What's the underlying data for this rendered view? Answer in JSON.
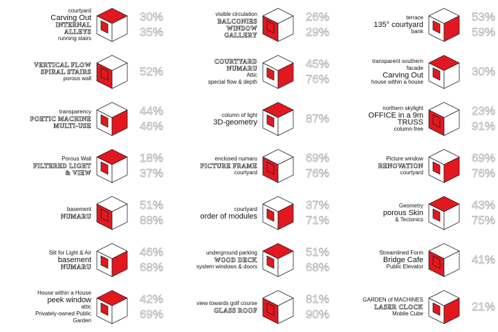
{
  "cells": [
    {
      "labels": [
        "courtyard",
        "Carving Out",
        "INTERNAL ALLEYS",
        "running stairs"
      ],
      "percents": [
        "30%",
        "35%"
      ]
    },
    {
      "labels": [
        "VERTICAL FLOW",
        "SPIRAL STAIRS",
        "porous wall"
      ],
      "percents": [
        "52%"
      ]
    },
    {
      "labels": [
        "transparency",
        "POETIC MACHINE",
        "MULTI-USE"
      ],
      "percents": [
        "44%",
        "46%"
      ]
    },
    {
      "labels": [
        "Porous Wall",
        "FILTERED LIGHT & VIEW"
      ],
      "percents": [
        "18%",
        "37%"
      ]
    },
    {
      "labels": [
        "basement",
        "NUMARU"
      ],
      "percents": [
        "51%",
        "88%"
      ]
    },
    {
      "labels": [
        "Slit for Light & Air",
        "basement",
        "NUMARU"
      ],
      "percents": [
        "46%",
        "68%"
      ]
    },
    {
      "labels": [
        "House within a House",
        "peek window",
        "attic",
        "Privately-owned Public Garden"
      ],
      "percents": [
        "42%",
        "69%"
      ]
    },
    {
      "labels": [
        "visible circulation",
        "BALCONIES",
        "WINDOW GALLERY"
      ],
      "percents": [
        "26%",
        "29%"
      ]
    },
    {
      "labels": [
        "COURTYARD",
        "NUMARU",
        "Attic",
        "special flow & depth"
      ],
      "percents": [
        "45%",
        "76%"
      ]
    },
    {
      "labels": [
        "column of light",
        "3D-geometry"
      ],
      "percents": [
        "87%"
      ]
    },
    {
      "labels": [
        "enclosed numaru",
        "PICTURE FRAME",
        "courtyard"
      ],
      "percents": [
        "69%",
        "76%"
      ]
    },
    {
      "labels": [
        "courtyard",
        "order of modules"
      ],
      "percents": [
        "37%",
        "71%"
      ]
    },
    {
      "labels": [
        "underground parking",
        "WOOD DECK",
        "system windows & doors"
      ],
      "percents": [
        "51%",
        "68%"
      ]
    },
    {
      "labels": [
        "view towards golf course",
        "GLASS ROOF"
      ],
      "percents": [
        "81%",
        "90%"
      ]
    },
    {
      "labels": [
        "terrace",
        "135° courtyard",
        "bank"
      ],
      "percents": [
        "53%",
        "59%"
      ]
    },
    {
      "labels": [
        "transparent southern facade",
        "Carving Out",
        "house within a house"
      ],
      "percents": [
        "30%"
      ]
    },
    {
      "labels": [
        "northern skylight",
        "OFFICE in a 9m TRUSS",
        "column-free"
      ],
      "percents": [
        "23%",
        "91%"
      ]
    },
    {
      "labels": [
        "Picture window",
        "RENOVATION",
        "courtyard"
      ],
      "percents": [
        "69%",
        "76%"
      ]
    },
    {
      "labels": [
        "Geometry",
        "porous Skin",
        "& Tectonics"
      ],
      "percents": [
        "43%",
        "75%"
      ]
    },
    {
      "labels": [
        "Streamlined Form",
        "Bridge Cafe",
        "Public Elevator"
      ],
      "percents": [
        "41%"
      ]
    },
    {
      "labels": [
        "GARDEN of MACHINES",
        "LASER CLOCK",
        "Mobile Cube"
      ],
      "percents": [
        "21%"
      ]
    }
  ]
}
